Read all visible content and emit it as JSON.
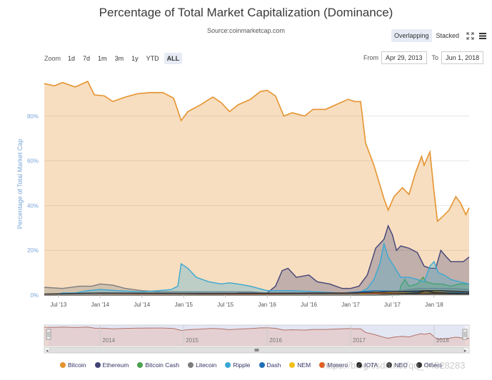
{
  "title": "Percentage of Total Market Capitalization (Dominance)",
  "subtitle": "Source:coinmarketcap.com",
  "view_toggle": {
    "overlapping": "Overlapping",
    "stacked": "Stacked",
    "active": "Overlapping",
    "fullscreen_icon": "fullscreen-icon",
    "menu_icon": "menu-icon"
  },
  "zoom": {
    "label": "Zoom",
    "buttons": [
      "1d",
      "7d",
      "1m",
      "3m",
      "1y",
      "YTD",
      "ALL"
    ],
    "active": "ALL"
  },
  "range": {
    "from_label": "From",
    "from_value": "Apr 29, 2013",
    "to_label": "To",
    "to_value": "Jun 1, 2018"
  },
  "watermark": "https://blog.csdn.net/qq_44528283",
  "chart_data": {
    "type": "area",
    "title": "Percentage of Total Market Capitalization (Dominance)",
    "subtitle": "Source:coinmarketcap.com",
    "ylabel": "Percentage of Total Market Cap",
    "xlabel": "",
    "ylim": [
      0,
      100
    ],
    "yticks": [
      "0%",
      "20%",
      "40%",
      "60%",
      "80%"
    ],
    "xticks": [
      "Jul '13",
      "Jan '14",
      "Jul '14",
      "Jan '15",
      "Jul '15",
      "Jan '16",
      "Jul '16",
      "Jan '17",
      "Jul '17",
      "Jan '18"
    ],
    "x_start": 2013.33,
    "x_end": 2018.42,
    "grid": true,
    "legend_position": "bottom",
    "series": [
      {
        "name": "Bitcoin",
        "color": "#e5932f",
        "points": [
          [
            2013.33,
            94.5
          ],
          [
            2013.45,
            93.5
          ],
          [
            2013.55,
            95
          ],
          [
            2013.7,
            93
          ],
          [
            2013.85,
            95.5
          ],
          [
            2013.93,
            89.5
          ],
          [
            2014.05,
            89
          ],
          [
            2014.15,
            86.5
          ],
          [
            2014.3,
            88.5
          ],
          [
            2014.45,
            90
          ],
          [
            2014.6,
            90.5
          ],
          [
            2014.75,
            90.5
          ],
          [
            2014.88,
            88
          ],
          [
            2014.97,
            78
          ],
          [
            2015.05,
            82
          ],
          [
            2015.2,
            85
          ],
          [
            2015.35,
            88.5
          ],
          [
            2015.45,
            86
          ],
          [
            2015.55,
            82
          ],
          [
            2015.65,
            85
          ],
          [
            2015.8,
            87.5
          ],
          [
            2015.92,
            91
          ],
          [
            2016.0,
            91.5
          ],
          [
            2016.1,
            89
          ],
          [
            2016.2,
            80
          ],
          [
            2016.3,
            81.5
          ],
          [
            2016.45,
            80
          ],
          [
            2016.55,
            83
          ],
          [
            2016.7,
            83
          ],
          [
            2016.85,
            85.5
          ],
          [
            2016.97,
            87.5
          ],
          [
            2017.05,
            86.5
          ],
          [
            2017.12,
            86.5
          ],
          [
            2017.18,
            68
          ],
          [
            2017.28,
            58
          ],
          [
            2017.4,
            43
          ],
          [
            2017.45,
            38
          ],
          [
            2017.52,
            44
          ],
          [
            2017.62,
            48
          ],
          [
            2017.7,
            45
          ],
          [
            2017.78,
            55
          ],
          [
            2017.85,
            62
          ],
          [
            2017.88,
            58
          ],
          [
            2017.95,
            64
          ],
          [
            2018.0,
            46
          ],
          [
            2018.04,
            33
          ],
          [
            2018.1,
            35
          ],
          [
            2018.18,
            38
          ],
          [
            2018.26,
            44
          ],
          [
            2018.32,
            41
          ],
          [
            2018.38,
            36
          ],
          [
            2018.42,
            39
          ]
        ]
      },
      {
        "name": "Ethereum",
        "color": "#434377",
        "points": [
          [
            2013.33,
            0
          ],
          [
            2015.55,
            0
          ],
          [
            2015.65,
            1
          ],
          [
            2015.8,
            1
          ],
          [
            2016.0,
            1
          ],
          [
            2016.1,
            4
          ],
          [
            2016.18,
            11
          ],
          [
            2016.25,
            12
          ],
          [
            2016.35,
            8
          ],
          [
            2016.5,
            9
          ],
          [
            2016.6,
            6
          ],
          [
            2016.75,
            5
          ],
          [
            2016.9,
            3
          ],
          [
            2017.0,
            3
          ],
          [
            2017.1,
            4
          ],
          [
            2017.2,
            9
          ],
          [
            2017.3,
            21
          ],
          [
            2017.4,
            25
          ],
          [
            2017.45,
            31
          ],
          [
            2017.5,
            27
          ],
          [
            2017.55,
            20
          ],
          [
            2017.6,
            22
          ],
          [
            2017.7,
            21
          ],
          [
            2017.8,
            19
          ],
          [
            2017.88,
            13
          ],
          [
            2017.95,
            12
          ],
          [
            2018.02,
            12
          ],
          [
            2018.08,
            20
          ],
          [
            2018.15,
            17
          ],
          [
            2018.2,
            15
          ],
          [
            2018.28,
            15
          ],
          [
            2018.35,
            15
          ],
          [
            2018.42,
            17
          ]
        ]
      },
      {
        "name": "Bitcoin Cash",
        "color": "#4aa150",
        "points": [
          [
            2013.33,
            0
          ],
          [
            2017.58,
            0
          ],
          [
            2017.6,
            4
          ],
          [
            2017.65,
            7
          ],
          [
            2017.7,
            4
          ],
          [
            2017.8,
            5
          ],
          [
            2017.87,
            8
          ],
          [
            2017.9,
            6
          ],
          [
            2018.0,
            5
          ],
          [
            2018.1,
            5
          ],
          [
            2018.2,
            4
          ],
          [
            2018.3,
            5
          ],
          [
            2018.42,
            5
          ]
        ]
      },
      {
        "name": "Litecoin",
        "color": "#7d7d7d",
        "points": [
          [
            2013.33,
            3.5
          ],
          [
            2013.55,
            3
          ],
          [
            2013.75,
            4
          ],
          [
            2013.9,
            4
          ],
          [
            2014.0,
            5
          ],
          [
            2014.15,
            4.5
          ],
          [
            2014.3,
            3
          ],
          [
            2014.5,
            2
          ],
          [
            2014.7,
            1.5
          ],
          [
            2014.9,
            1.5
          ],
          [
            2015.2,
            1.5
          ],
          [
            2015.5,
            1.5
          ],
          [
            2015.8,
            1.5
          ],
          [
            2016.0,
            1
          ],
          [
            2016.5,
            1
          ],
          [
            2017.0,
            1
          ],
          [
            2017.2,
            1.5
          ],
          [
            2017.4,
            2
          ],
          [
            2017.6,
            2
          ],
          [
            2017.8,
            3
          ],
          [
            2018.0,
            3
          ],
          [
            2018.2,
            3
          ],
          [
            2018.42,
            2.5
          ]
        ]
      },
      {
        "name": "Ripple",
        "color": "#39a8d3",
        "points": [
          [
            2013.33,
            0
          ],
          [
            2013.45,
            0
          ],
          [
            2013.55,
            1
          ],
          [
            2013.7,
            1
          ],
          [
            2013.85,
            2
          ],
          [
            2014.0,
            2.5
          ],
          [
            2014.2,
            2
          ],
          [
            2014.5,
            1.5
          ],
          [
            2014.7,
            2
          ],
          [
            2014.85,
            2.5
          ],
          [
            2014.93,
            4
          ],
          [
            2014.97,
            14
          ],
          [
            2015.05,
            12
          ],
          [
            2015.15,
            8
          ],
          [
            2015.3,
            6
          ],
          [
            2015.45,
            5
          ],
          [
            2015.55,
            5.5
          ],
          [
            2015.65,
            5
          ],
          [
            2015.8,
            4
          ],
          [
            2016.0,
            2
          ],
          [
            2016.3,
            2
          ],
          [
            2016.6,
            1.5
          ],
          [
            2016.9,
            1
          ],
          [
            2017.1,
            1
          ],
          [
            2017.2,
            3
          ],
          [
            2017.28,
            7
          ],
          [
            2017.35,
            14
          ],
          [
            2017.4,
            23
          ],
          [
            2017.45,
            17
          ],
          [
            2017.5,
            14
          ],
          [
            2017.6,
            8
          ],
          [
            2017.7,
            8
          ],
          [
            2017.8,
            7
          ],
          [
            2017.88,
            6
          ],
          [
            2017.95,
            13
          ],
          [
            2018.0,
            15
          ],
          [
            2018.05,
            10
          ],
          [
            2018.12,
            9
          ],
          [
            2018.2,
            7
          ],
          [
            2018.3,
            6
          ],
          [
            2018.42,
            5
          ]
        ]
      },
      {
        "name": "Dash",
        "color": "#1f6fb4",
        "points": [
          [
            2013.33,
            0
          ],
          [
            2015.0,
            0
          ],
          [
            2015.2,
            0.5
          ],
          [
            2015.5,
            0.5
          ],
          [
            2016.0,
            0.5
          ],
          [
            2016.5,
            1
          ],
          [
            2016.9,
            1
          ],
          [
            2017.1,
            1.5
          ],
          [
            2017.3,
            2
          ],
          [
            2017.5,
            1.5
          ],
          [
            2017.8,
            1.5
          ],
          [
            2018.0,
            1.2
          ],
          [
            2018.42,
            1
          ]
        ]
      },
      {
        "name": "NEM",
        "color": "#f2c018",
        "points": [
          [
            2013.33,
            0
          ],
          [
            2015.3,
            0
          ],
          [
            2016.0,
            0.1
          ],
          [
            2017.1,
            0.2
          ],
          [
            2017.2,
            1
          ],
          [
            2017.3,
            1.5
          ],
          [
            2017.5,
            1
          ],
          [
            2017.8,
            1
          ],
          [
            2018.0,
            1.5
          ],
          [
            2018.2,
            0.8
          ],
          [
            2018.42,
            0.6
          ]
        ]
      },
      {
        "name": "Monero",
        "color": "#e35b1a",
        "points": [
          [
            2013.33,
            0
          ],
          [
            2014.5,
            0.3
          ],
          [
            2015.0,
            0.2
          ],
          [
            2016.0,
            0.5
          ],
          [
            2016.5,
            1
          ],
          [
            2017.0,
            1
          ],
          [
            2017.5,
            0.8
          ],
          [
            2018.0,
            0.6
          ],
          [
            2018.42,
            0.6
          ]
        ]
      },
      {
        "name": "IOTA",
        "color": "#222222",
        "points": [
          [
            2013.33,
            0
          ],
          [
            2017.45,
            0
          ],
          [
            2017.5,
            0.5
          ],
          [
            2017.8,
            1
          ],
          [
            2017.9,
            2
          ],
          [
            2018.0,
            1.2
          ],
          [
            2018.2,
            0.8
          ],
          [
            2018.42,
            0.6
          ]
        ]
      },
      {
        "name": "NEO",
        "color": "#444444",
        "points": [
          [
            2013.33,
            0
          ],
          [
            2017.3,
            0
          ],
          [
            2017.4,
            0.5
          ],
          [
            2017.6,
            0.6
          ],
          [
            2017.9,
            0.5
          ],
          [
            2018.05,
            0.8
          ],
          [
            2018.2,
            0.5
          ],
          [
            2018.42,
            0.4
          ]
        ]
      },
      {
        "name": "Others",
        "color": "#333333",
        "points": [
          [
            2013.33,
            0.5
          ],
          [
            2014.0,
            1
          ],
          [
            2015.0,
            0.8
          ],
          [
            2016.0,
            0.8
          ],
          [
            2017.0,
            1
          ],
          [
            2017.5,
            1.5
          ],
          [
            2017.9,
            2
          ],
          [
            2018.1,
            2
          ],
          [
            2018.42,
            1.5
          ]
        ]
      }
    ],
    "navigator": {
      "years": [
        "2014",
        "2015",
        "2016",
        "2017",
        "2018"
      ]
    }
  }
}
